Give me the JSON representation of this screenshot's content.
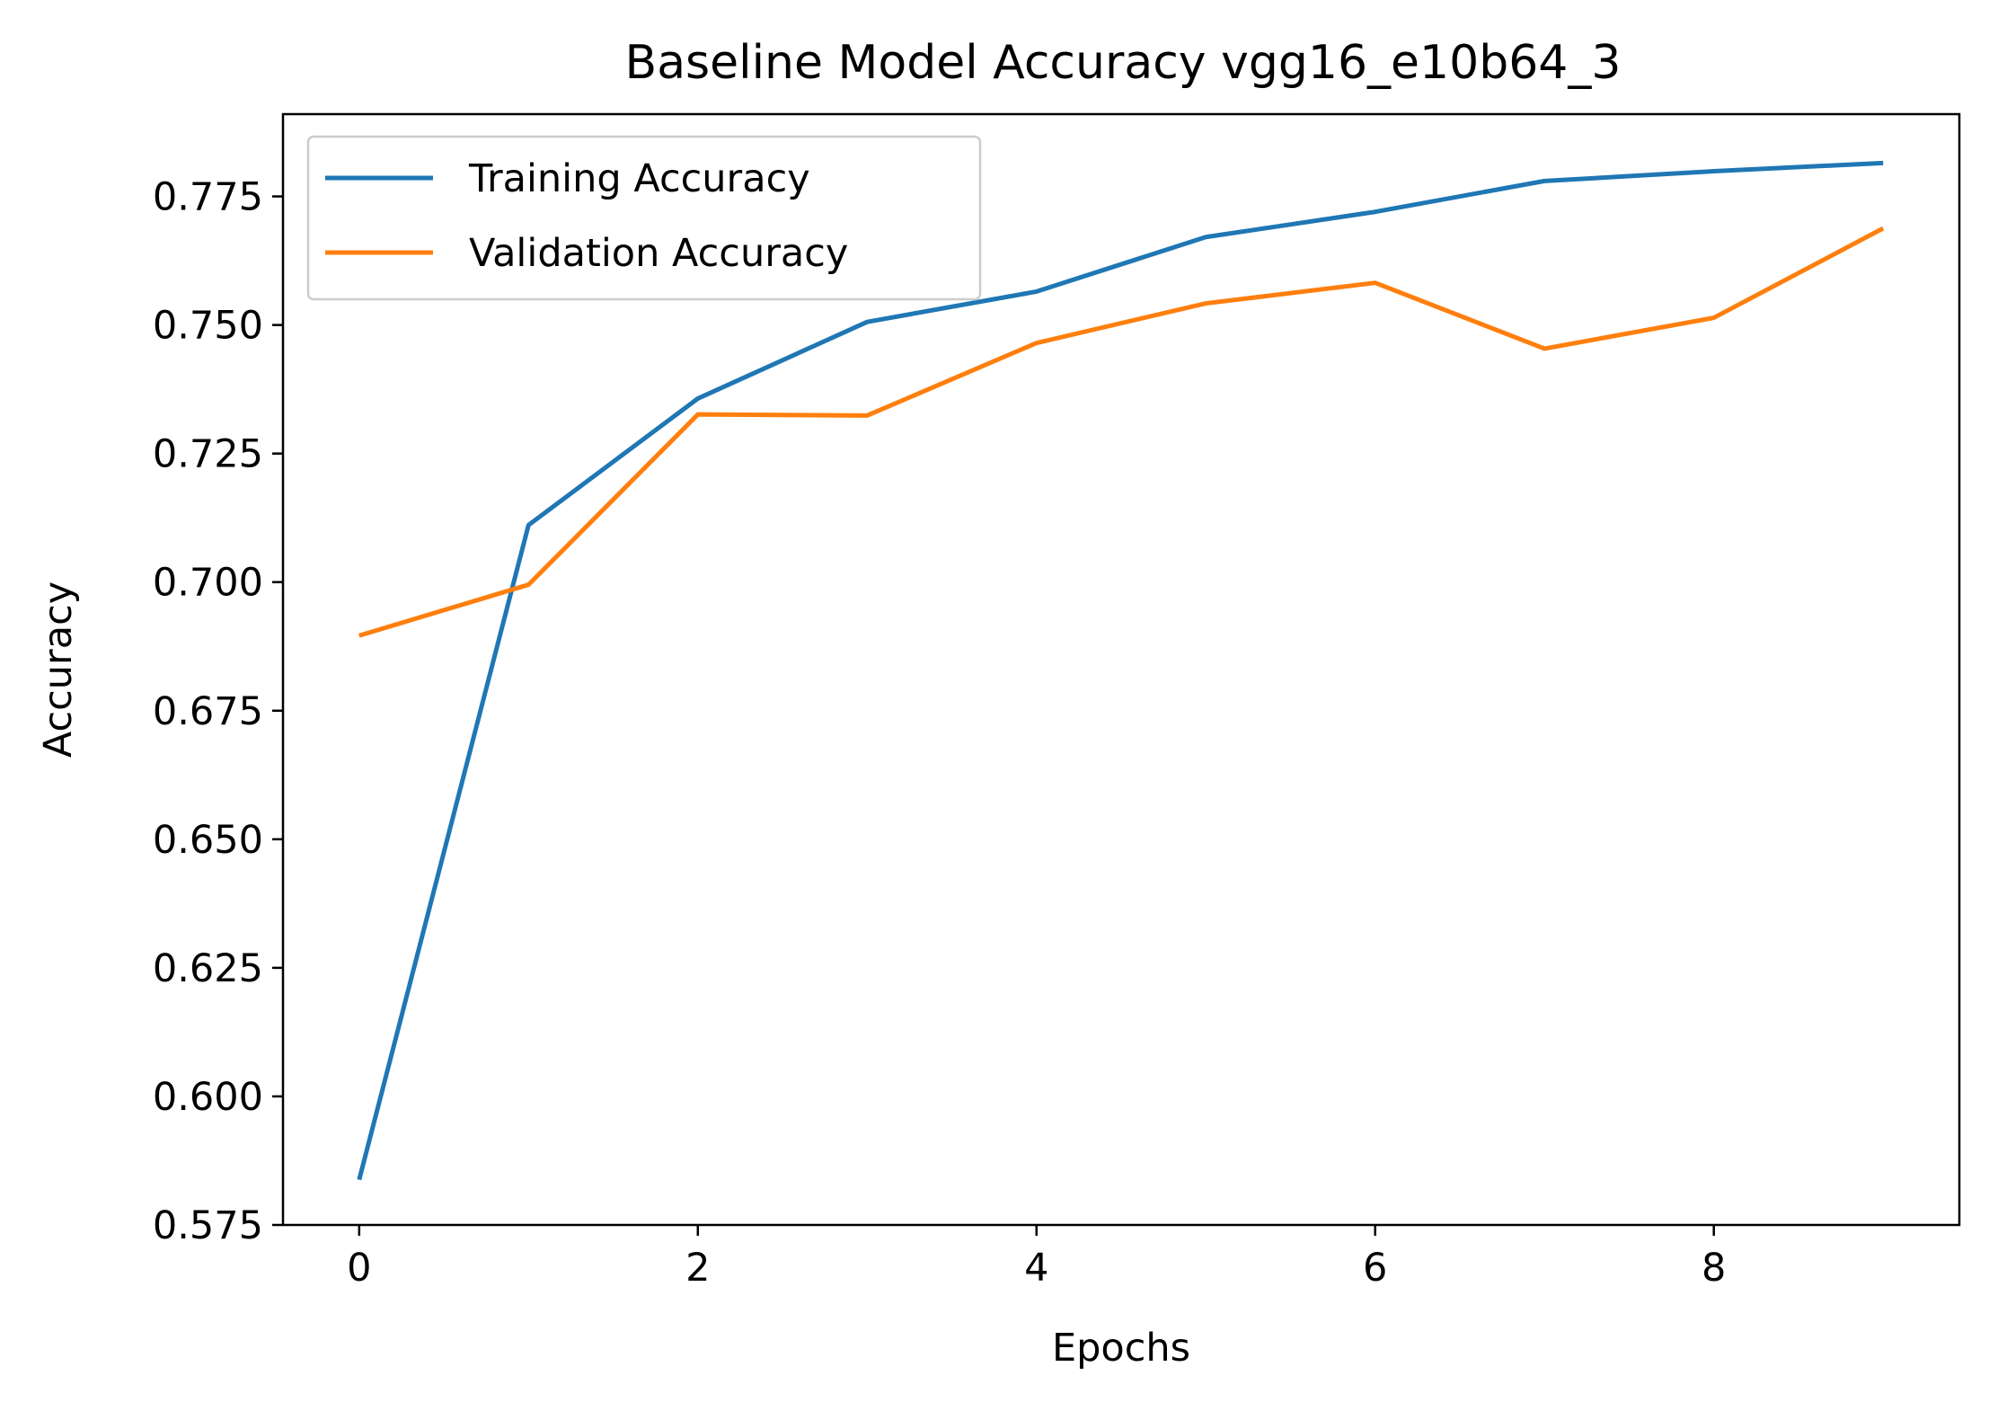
{
  "chart_data": {
    "type": "line",
    "title": "Baseline Model Accuracy vgg16_e10b64_3",
    "xlabel": "Epochs",
    "ylabel": "Accuracy",
    "x": [
      0,
      1,
      2,
      3,
      4,
      5,
      6,
      7,
      8,
      9
    ],
    "xlim": [
      -0.45,
      9.45
    ],
    "ylim": [
      0.575,
      0.791
    ],
    "xticks": [
      0,
      2,
      4,
      6,
      8
    ],
    "xtick_labels": [
      "0",
      "2",
      "4",
      "6",
      "8"
    ],
    "yticks": [
      0.575,
      0.6,
      0.625,
      0.65,
      0.675,
      0.7,
      0.725,
      0.75,
      0.775
    ],
    "ytick_labels": [
      "0.575",
      "0.600",
      "0.625",
      "0.650",
      "0.675",
      "0.700",
      "0.725",
      "0.750",
      "0.775"
    ],
    "grid": false,
    "legend_position": "top-left",
    "series": [
      {
        "name": "Training Accuracy",
        "color": "#1f77b4",
        "values": [
          0.5838,
          0.7111,
          0.7357,
          0.7506,
          0.7565,
          0.7671,
          0.772,
          0.778,
          0.7799,
          0.7815
        ]
      },
      {
        "name": "Validation Accuracy",
        "color": "#ff7f0e",
        "values": [
          0.6896,
          0.6995,
          0.7326,
          0.7324,
          0.7465,
          0.7542,
          0.7582,
          0.7454,
          0.7514,
          0.7688
        ]
      }
    ]
  }
}
